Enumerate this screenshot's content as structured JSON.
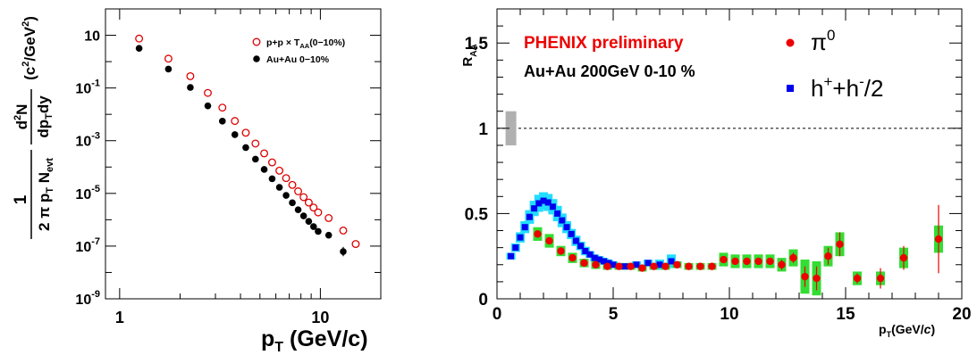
{
  "chart_data": [
    {
      "type": "scatter",
      "x_scale": "log",
      "y_scale": "log",
      "xlim": [
        0.85,
        20
      ],
      "ylim": [
        1e-09,
        100
      ],
      "xlabel_main": "p",
      "xlabel_sub": "T",
      "xlabel_rest": " (GeV/c)",
      "ylabel": {
        "prefix": "1",
        "den_a": "2 π p",
        "den_a_sub": "T",
        "den_b": " N",
        "den_b_sub": "evt",
        "num2": "d",
        "num2_sup": "2",
        "num2_rest": "N",
        "den2_a": "dp",
        "den2_a_sub": "T",
        "den2_b": "dy",
        "unit": "(c",
        "unit_sup": "2",
        "unit_mid": "/GeV",
        "unit_sup2": "2",
        "unit_end": ")"
      },
      "x_ticks": [
        {
          "v": 1,
          "label": "1"
        },
        {
          "v": 10,
          "label": "10"
        }
      ],
      "y_ticks": [
        {
          "v": 10,
          "base": "10",
          "exp": ""
        },
        {
          "v": 0.1,
          "base": "10",
          "exp": "-1"
        },
        {
          "v": 0.001,
          "base": "10",
          "exp": "-3"
        },
        {
          "v": 1e-05,
          "base": "10",
          "exp": "-5"
        },
        {
          "v": 1e-07,
          "base": "10",
          "exp": "-7"
        },
        {
          "v": 1e-09,
          "base": "10",
          "exp": "-9"
        }
      ],
      "legend_position": "top-right",
      "series": [
        {
          "name": "p+p × T",
          "name_sub": "AA",
          "name_rest": "(0−10%)",
          "color": "#dd0000",
          "marker": "open-circle",
          "x": [
            1.25,
            1.75,
            2.25,
            2.75,
            3.25,
            3.75,
            4.25,
            4.75,
            5.25,
            5.75,
            6.25,
            6.75,
            7.25,
            7.75,
            8.25,
            8.75,
            9.25,
            9.75,
            11.0,
            13.0,
            15.0
          ],
          "y": [
            7.5,
            1.3,
            0.28,
            0.065,
            0.018,
            0.0056,
            0.002,
            0.00078,
            0.00033,
            0.00015,
            7.3e-05,
            3.8e-05,
            2.1e-05,
            1.2e-05,
            7.2e-06,
            4.5e-06,
            2.9e-06,
            1.9e-06,
            1.16e-06,
            3.9e-07,
            1.2e-07
          ]
        },
        {
          "name": "Au+Au 0−10%",
          "color": "#000000",
          "marker": "filled-circle",
          "x": [
            1.25,
            1.75,
            2.25,
            2.75,
            3.25,
            3.75,
            4.25,
            4.75,
            5.25,
            5.75,
            6.25,
            6.75,
            7.25,
            7.75,
            8.25,
            8.75,
            9.25,
            9.75,
            11.0,
            13.0
          ],
          "y": [
            3.2,
            0.52,
            0.105,
            0.021,
            0.0055,
            0.0017,
            0.00055,
            0.0002,
            8.1e-05,
            3.6e-05,
            1.7e-05,
            8.4e-06,
            4.4e-06,
            2.4e-06,
            1.4e-06,
            8.7e-07,
            5.5e-07,
            3.6e-07,
            2.6e-07,
            6.2e-08
          ]
        }
      ]
    },
    {
      "type": "scatter",
      "x_scale": "linear",
      "y_scale": "linear",
      "xlim": [
        0,
        20
      ],
      "ylim": [
        0,
        1.7
      ],
      "ylabel_main": "R",
      "ylabel_sub": "AA",
      "xlabel_main": "p",
      "xlabel_sub": "T",
      "xlabel_rest": "(GeV/",
      "xlabel_italic": "c",
      "xlabel_end": ")",
      "x_ticks": [
        {
          "v": 0,
          "label": "0"
        },
        {
          "v": 5,
          "label": "5"
        },
        {
          "v": 10,
          "label": "10"
        },
        {
          "v": 15,
          "label": "15"
        },
        {
          "v": 20,
          "label": "20"
        }
      ],
      "y_ticks": [
        {
          "v": 0,
          "label": "0"
        },
        {
          "v": 0.5,
          "label": "0.5"
        },
        {
          "v": 1,
          "label": "1"
        },
        {
          "v": 1.5,
          "label": "1.5"
        }
      ],
      "reference_line": 1.0,
      "norm_box": {
        "x": 0.6,
        "y_low": 0.9,
        "y_high": 1.1
      },
      "annotation_title": "PHENIX preliminary",
      "annotation_title_color": "#ee0000",
      "annotation_system": "Au+Au 200GeV 0-10 %",
      "legend_position": "top-right",
      "series": [
        {
          "name": "π",
          "name_sup": "0",
          "color": "#ee0000",
          "syst_color": "#33dd33",
          "marker": "filled-circle",
          "x": [
            1.75,
            2.25,
            2.75,
            3.25,
            3.75,
            4.25,
            4.75,
            5.25,
            5.75,
            6.25,
            6.75,
            7.25,
            7.75,
            8.25,
            8.75,
            9.25,
            9.75,
            10.25,
            10.75,
            11.25,
            11.75,
            12.25,
            12.75,
            13.25,
            13.75,
            14.25,
            14.75,
            15.5,
            16.5,
            17.5,
            19.0
          ],
          "y": [
            0.38,
            0.34,
            0.28,
            0.24,
            0.21,
            0.2,
            0.19,
            0.19,
            0.19,
            0.18,
            0.19,
            0.19,
            0.2,
            0.19,
            0.19,
            0.19,
            0.23,
            0.22,
            0.22,
            0.22,
            0.22,
            0.2,
            0.24,
            0.13,
            0.12,
            0.25,
            0.32,
            0.12,
            0.12,
            0.24,
            0.35
          ],
          "syst": [
            0.04,
            0.04,
            0.03,
            0.03,
            0.025,
            0.025,
            0.02,
            0.02,
            0.02,
            0.02,
            0.02,
            0.02,
            0.02,
            0.02,
            0.02,
            0.02,
            0.04,
            0.04,
            0.04,
            0.04,
            0.04,
            0.04,
            0.05,
            0.1,
            0.1,
            0.06,
            0.07,
            0.04,
            0.04,
            0.06,
            0.08
          ],
          "stat": [
            0.02,
            0.015,
            0.01,
            0.01,
            0.01,
            0.01,
            0.01,
            0.01,
            0.01,
            0.01,
            0.01,
            0.01,
            0.01,
            0.01,
            0.01,
            0.01,
            0.02,
            0.02,
            0.02,
            0.02,
            0.02,
            0.03,
            0.03,
            0.06,
            0.07,
            0.05,
            0.07,
            0.03,
            0.06,
            0.07,
            0.2
          ]
        },
        {
          "name": "h",
          "name_sup": "+",
          "name_mid": "+h",
          "name_sup2": "-",
          "name_end": "/2",
          "color": "#0000ee",
          "syst_color": "#22ddff",
          "marker": "filled-square",
          "x": [
            0.6,
            0.8,
            1.0,
            1.2,
            1.4,
            1.6,
            1.8,
            2.0,
            2.2,
            2.4,
            2.6,
            2.8,
            3.0,
            3.2,
            3.4,
            3.6,
            3.8,
            4.0,
            4.2,
            4.4,
            4.6,
            4.8,
            5.0,
            5.5,
            6.0,
            6.5,
            7.0,
            7.5
          ],
          "y": [
            0.25,
            0.3,
            0.36,
            0.42,
            0.48,
            0.53,
            0.56,
            0.575,
            0.565,
            0.54,
            0.5,
            0.46,
            0.42,
            0.38,
            0.34,
            0.31,
            0.28,
            0.26,
            0.24,
            0.23,
            0.22,
            0.21,
            0.2,
            0.19,
            0.2,
            0.21,
            0.2,
            0.22
          ],
          "syst": [
            0.02,
            0.025,
            0.03,
            0.035,
            0.04,
            0.045,
            0.05,
            0.05,
            0.05,
            0.045,
            0.045,
            0.04,
            0.035,
            0.03,
            0.03,
            0.025,
            0.025,
            0.02,
            0.02,
            0.02,
            0.02,
            0.02,
            0.02,
            0.02,
            0.02,
            0.02,
            0.03,
            0.04
          ]
        }
      ]
    }
  ]
}
